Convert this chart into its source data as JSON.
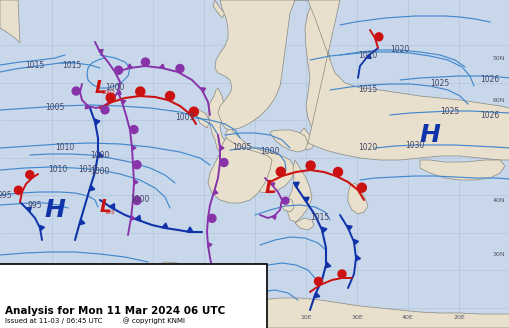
{
  "title": "Analysis for Mon 11 Mar 2024 06 UTC",
  "subtitle": "Issued at 11-03 / 06:45 UTC",
  "copyright": "@ copyright KNMI",
  "bg_ocean": "#c8d8ea",
  "bg_land": "#e8e0cc",
  "isobar_color": "#4488cc",
  "cold_color": "#1133aa",
  "warm_color": "#cc1111",
  "occ_color": "#8833aa",
  "H_color": "#1133aa",
  "L_color": "#cc1111",
  "grid_color": "#b0c0d8",
  "coast_color": "#888880",
  "pressure_color": "#444466",
  "figwidth": 5.1,
  "figheight": 3.28,
  "dpi": 100
}
